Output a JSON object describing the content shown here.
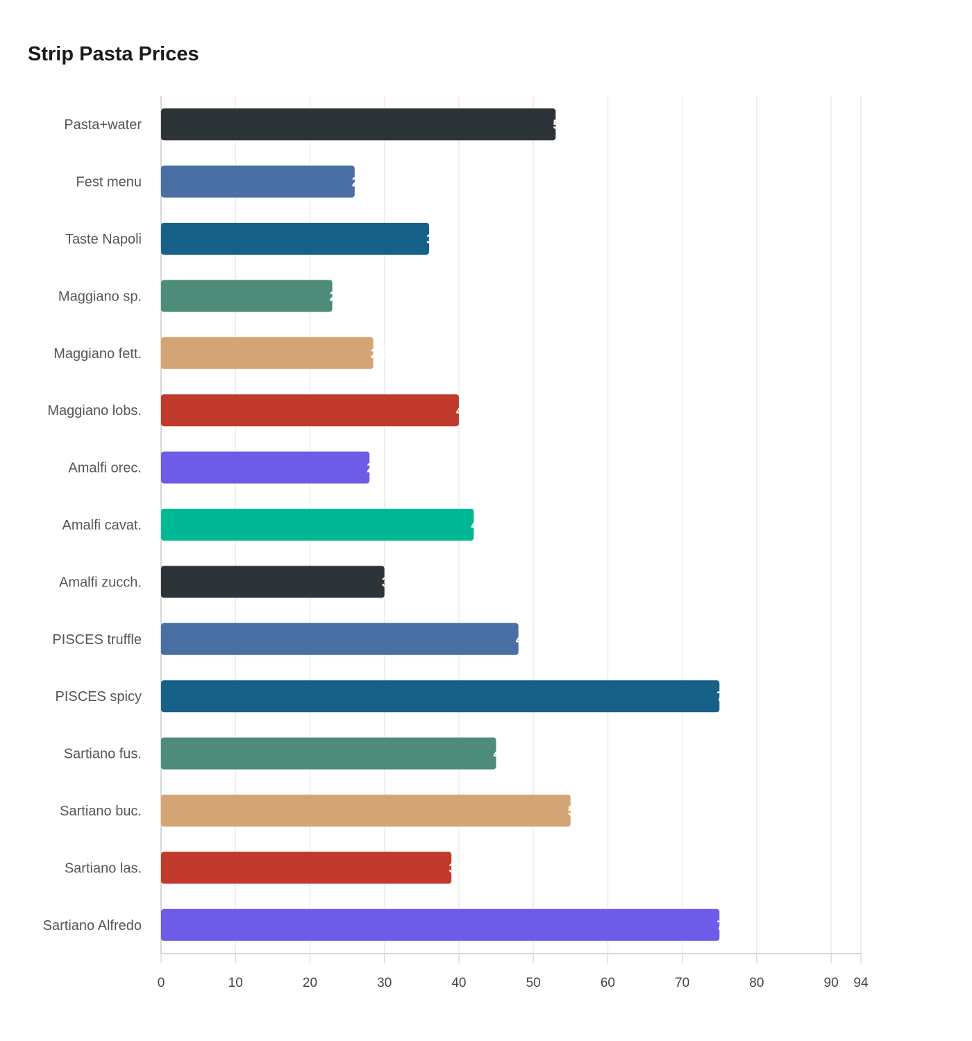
{
  "chart_data": {
    "type": "bar",
    "orientation": "horizontal",
    "title": "Strip Pasta Prices",
    "xlabel": "",
    "ylabel": "",
    "categories": [
      "Pasta+water",
      "Fest menu",
      "Taste Napoli",
      "Maggiano sp.",
      "Maggiano fett.",
      "Maggiano lobs.",
      "Amalfi orec.",
      "Amalfi cavat.",
      "Amalfi zucch.",
      "PISCES truffle",
      "PISCES spicy",
      "Sartiano fus.",
      "Sartiano buc.",
      "Sartiano las.",
      "Sartiano Alfredo"
    ],
    "values": [
      53,
      26,
      36,
      23,
      28.5,
      40,
      28,
      42,
      30,
      48,
      75,
      45,
      55,
      39,
      75
    ],
    "colors": [
      "#2c3437",
      "#4a6fa5",
      "#176087",
      "#4e8b7a",
      "#d4a574",
      "#c0392b",
      "#6c5ce7",
      "#00b894",
      "#2c3437",
      "#4a6fa5",
      "#176087",
      "#4e8b7a",
      "#d4a574",
      "#c0392b",
      "#6c5ce7"
    ],
    "xlim": [
      0,
      94
    ],
    "xticks": [
      0,
      10,
      20,
      30,
      40,
      50,
      60,
      70,
      80,
      90,
      94
    ],
    "grid": "vertical",
    "legend": "none"
  }
}
